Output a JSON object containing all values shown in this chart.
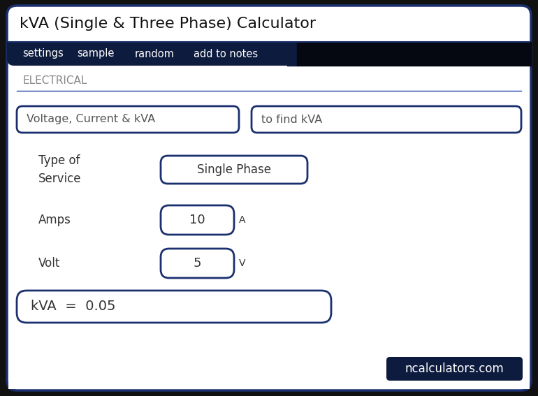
{
  "title": "kVA (Single & Three Phase) Calculator",
  "nav_items": [
    "settings",
    "sample",
    "random",
    "add to notes"
  ],
  "nav_bg": "#0d1b3e",
  "nav_text_color": "#ffffff",
  "section_label": "ELECTRICAL",
  "section_label_color": "#888888",
  "input_box1": "Voltage, Current & kVA",
  "input_box2": "to find kVA",
  "label_type": "Type of\nService",
  "value_type": "Single Phase",
  "label_amps": "Amps",
  "value_amps": "10",
  "unit_amps": "A",
  "label_volt": "Volt",
  "value_volt": "5",
  "unit_volt": "V",
  "result_text": "kVA  =  0.05",
  "watermark": "ncalculators.com",
  "watermark_bg": "#0d1b3e",
  "watermark_text_color": "#ffffff",
  "outer_bg": "#111111",
  "inner_bg": "#ffffff",
  "border_color": "#1a2f6e",
  "body_text_color": "#333333",
  "input_text_color": "#555555",
  "elec_line_color": "#2244aa",
  "fig_w": 7.7,
  "fig_h": 5.67,
  "dpi": 100
}
